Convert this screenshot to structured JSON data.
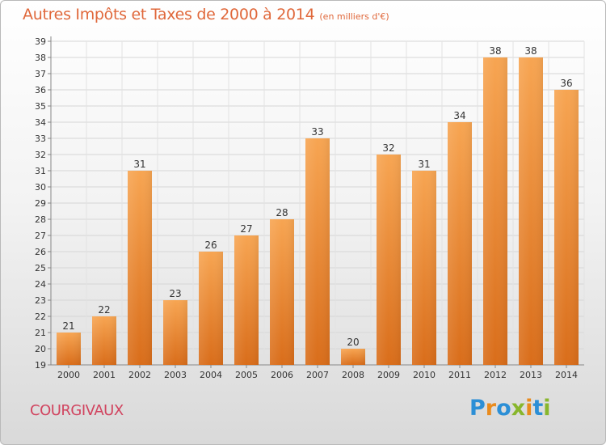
{
  "title": "Autres Impôts et Taxes de 2000 à 2014",
  "subtitle": "(en milliers d'€)",
  "commune": "COURGIVAUX",
  "logo": {
    "letters": [
      "P",
      "r",
      "o",
      "x",
      "i",
      "t",
      "i"
    ],
    "colors": [
      "#2c8fd6",
      "#e98b1d",
      "#2c8fd6",
      "#88b62c",
      "#e98b1d",
      "#2c8fd6",
      "#88b62c"
    ]
  },
  "chart_data": {
    "type": "bar",
    "categories": [
      "2000",
      "2001",
      "2002",
      "2003",
      "2004",
      "2005",
      "2006",
      "2007",
      "2008",
      "2009",
      "2010",
      "2011",
      "2012",
      "2013",
      "2014"
    ],
    "values": [
      21,
      22,
      31,
      23,
      26,
      27,
      28,
      33,
      20,
      32,
      31,
      34,
      38,
      38,
      36
    ],
    "ylim": [
      19,
      39
    ],
    "yticks": [
      19,
      20,
      21,
      22,
      23,
      24,
      25,
      26,
      27,
      28,
      29,
      30,
      31,
      32,
      33,
      34,
      35,
      36,
      37,
      38,
      39
    ],
    "grid": true,
    "bar_color": "#f0903a"
  }
}
